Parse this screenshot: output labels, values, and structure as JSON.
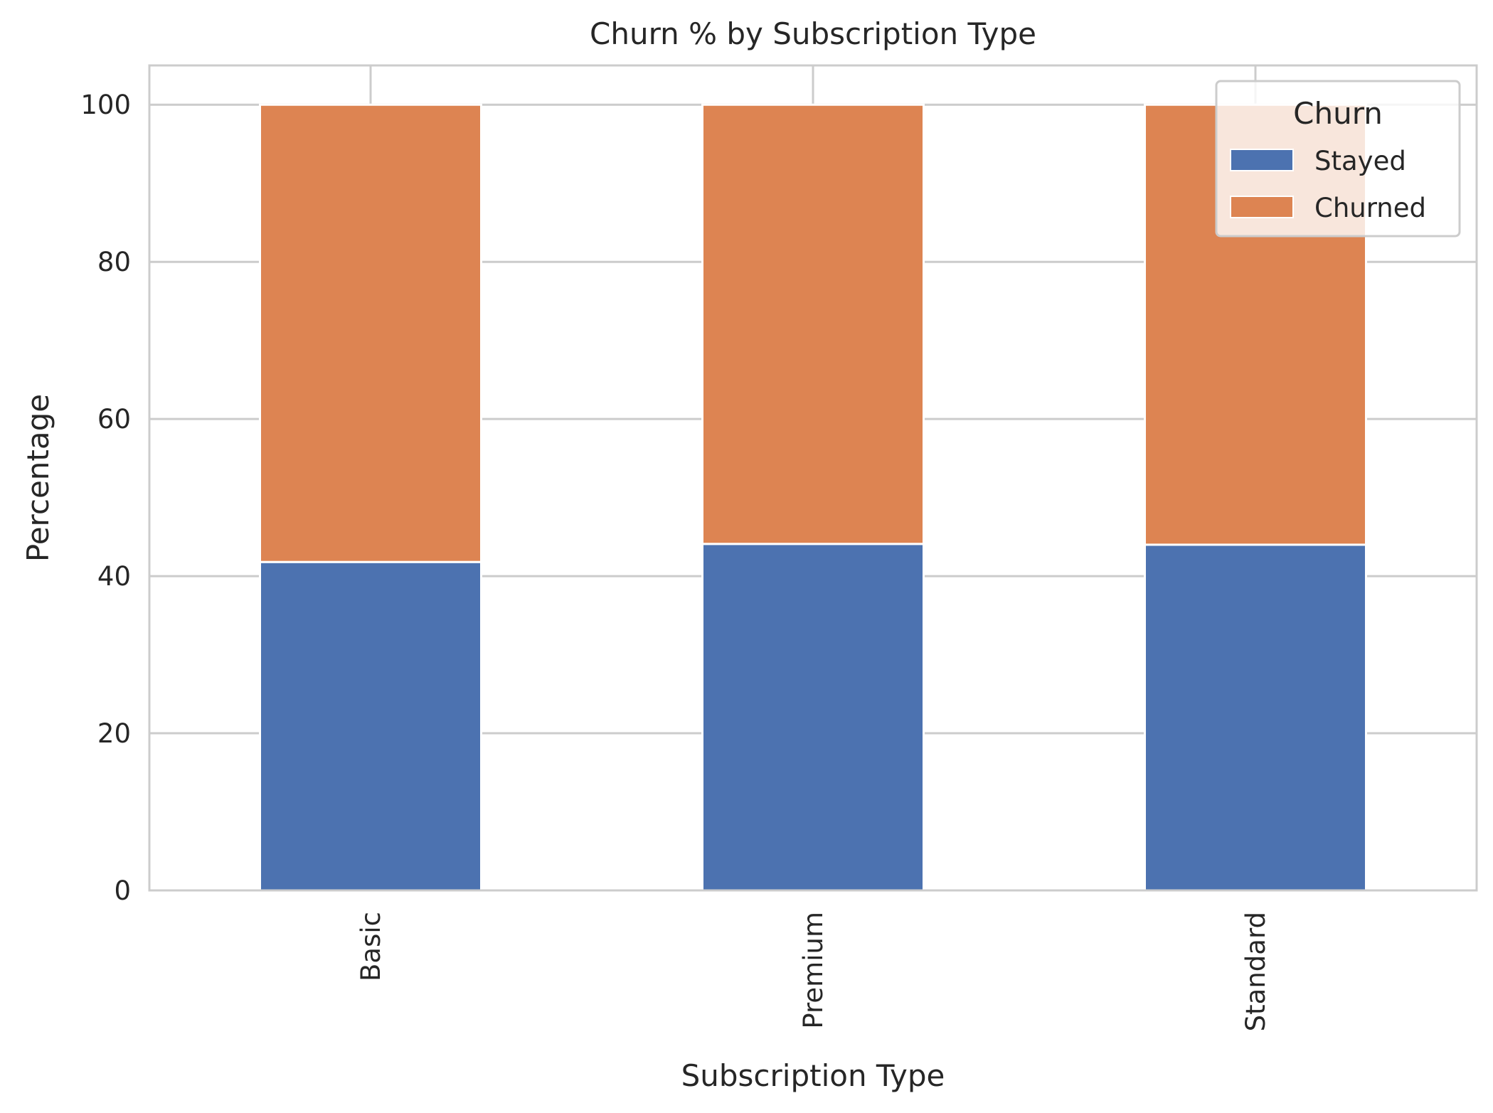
{
  "chart_data": {
    "type": "bar",
    "stacked": true,
    "title": "Churn % by Subscription Type",
    "xlabel": "Subscription Type",
    "ylabel": "Percentage",
    "categories": [
      "Basic",
      "Premium",
      "Standard"
    ],
    "series": [
      {
        "name": "Stayed",
        "color": "#4c72b0",
        "values": [
          41.8,
          44.1,
          44.0
        ]
      },
      {
        "name": "Churned",
        "color": "#dd8452",
        "values": [
          58.2,
          55.9,
          56.0
        ]
      }
    ],
    "yticks": [
      0,
      20,
      40,
      60,
      80,
      100
    ],
    "ylim": [
      0,
      105
    ],
    "grid": true,
    "legend": {
      "title": "Churn",
      "position": "top-right"
    }
  }
}
